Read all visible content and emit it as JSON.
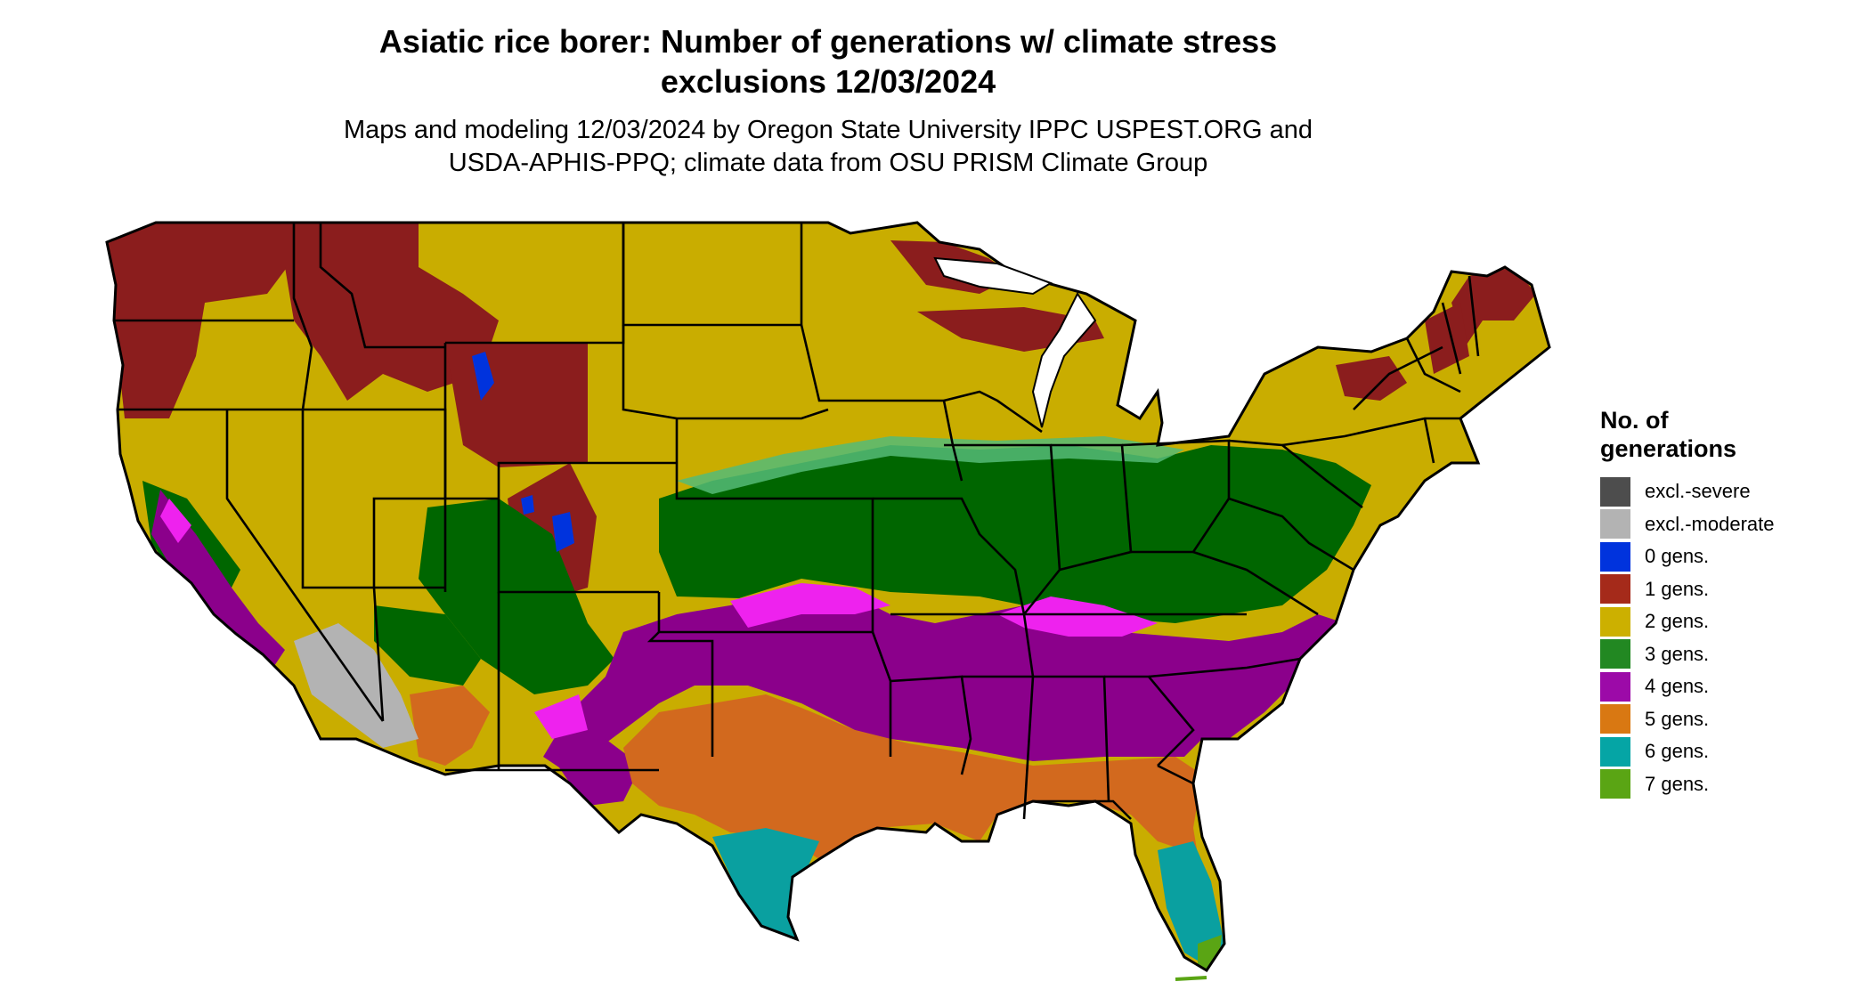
{
  "title_lines": [
    "Asiatic rice borer: Number of generations w/ climate stress",
    "exclusions 12/03/2024"
  ],
  "subtitle_lines": [
    "Maps and modeling 12/03/2024 by Oregon State University IPPC USPEST.ORG and",
    "USDA-APHIS-PPQ; climate data from OSU PRISM Climate Group"
  ],
  "legend": {
    "title_lines": [
      "No. of",
      "generations"
    ],
    "items": [
      {
        "label": "excl.-severe",
        "color": "#4d4d4d"
      },
      {
        "label": "excl.-moderate",
        "color": "#b3b3b3"
      },
      {
        "label": "0 gens.",
        "color": "#0033dd"
      },
      {
        "label": "1 gens.",
        "color": "#a52a1a"
      },
      {
        "label": "2 gens.",
        "color": "#ccb000"
      },
      {
        "label": "3 gens.",
        "color": "#228822"
      },
      {
        "label": "4 gens.",
        "color": "#9c0aa8"
      },
      {
        "label": "5 gens.",
        "color": "#d97812"
      },
      {
        "label": "6 gens.",
        "color": "#05a5a5"
      },
      {
        "label": "7 gens.",
        "color": "#5aa514"
      }
    ]
  },
  "map_colors": {
    "one_gen": "#8b1d1d",
    "two_gen": "#c9ad00",
    "three_gen": "#006600",
    "three_gen_light": "#55bb77",
    "four_gen": "#8b008b",
    "four_gen_bright": "#ee22ee",
    "five_gen": "#d2691e",
    "six_gen": "#0aa0a0",
    "seven_gen": "#5aa514",
    "excl_moderate": "#b3b3b3",
    "zero_gen": "#0033dd",
    "border": "#000000"
  }
}
